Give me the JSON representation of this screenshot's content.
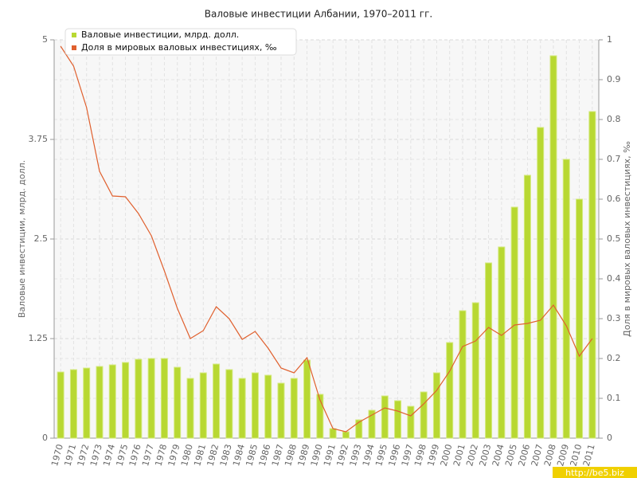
{
  "chart_data": {
    "type": "bar",
    "title": "Валовые инвестиции Албании, 1970–2011 гг.",
    "ylabel": "Валовые инвестиции, млрд. долл.",
    "y2label": "Доля в мировых валовых инвестициях, ‰",
    "watermark": "http://be5.biz",
    "categories": [
      "1970",
      "1971",
      "1972",
      "1973",
      "1974",
      "1975",
      "1976",
      "1977",
      "1978",
      "1979",
      "1980",
      "1981",
      "1982",
      "1983",
      "1984",
      "1985",
      "1986",
      "1987",
      "1988",
      "1989",
      "1990",
      "1991",
      "1992",
      "1993",
      "1994",
      "1995",
      "1996",
      "1997",
      "1998",
      "1999",
      "2000",
      "2001",
      "2002",
      "2003",
      "2004",
      "2005",
      "2006",
      "2007",
      "2008",
      "2009",
      "2010",
      "2011"
    ],
    "series": [
      {
        "name": "Валовые инвестиции, млрд. долл.",
        "color": "#b8d832",
        "type": "bar",
        "values": [
          0.83,
          0.86,
          0.88,
          0.9,
          0.92,
          0.95,
          0.99,
          1.0,
          1.0,
          0.89,
          0.75,
          0.82,
          0.93,
          0.86,
          0.75,
          0.82,
          0.79,
          0.69,
          0.75,
          0.98,
          0.55,
          0.12,
          0.08,
          0.23,
          0.35,
          0.53,
          0.47,
          0.4,
          0.58,
          0.82,
          1.2,
          1.6,
          1.7,
          2.2,
          2.4,
          2.9,
          3.3,
          3.9,
          4.8,
          3.5,
          3.0,
          4.1
        ]
      },
      {
        "name": "Доля в мировых валовых инвестициях, ‰",
        "color": "#e0602e",
        "type": "line",
        "axis": "y2",
        "values": [
          0.984,
          0.934,
          0.83,
          0.67,
          0.608,
          0.606,
          0.564,
          0.508,
          0.42,
          0.326,
          0.25,
          0.27,
          0.33,
          0.3,
          0.248,
          0.268,
          0.226,
          0.176,
          0.164,
          0.202,
          0.096,
          0.024,
          0.016,
          0.04,
          0.058,
          0.076,
          0.068,
          0.056,
          0.086,
          0.12,
          0.168,
          0.23,
          0.244,
          0.278,
          0.258,
          0.284,
          0.288,
          0.296,
          0.334,
          0.282,
          0.206,
          0.25
        ]
      }
    ],
    "ylim": [
      0,
      5
    ],
    "yticks": [
      0,
      1.25,
      2.5,
      3.75,
      5
    ],
    "y2lim": [
      0,
      1
    ],
    "y2ticks": [
      0,
      0.1,
      0.2,
      0.3,
      0.4,
      0.5,
      0.6,
      0.7,
      0.8,
      0.9,
      1
    ],
    "grid": true,
    "legend": "top-left"
  }
}
